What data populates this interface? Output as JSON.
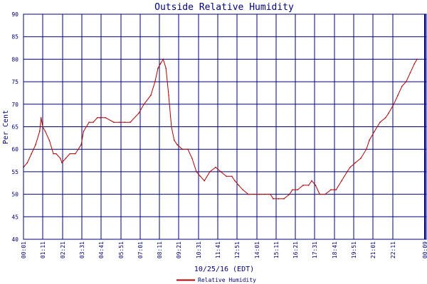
{
  "chart_data": {
    "type": "line",
    "title": "Outside Relative Humidity",
    "xlabel": "10/25/16 (EDT)",
    "ylabel": "Per Cent",
    "ylim": [
      40,
      90
    ],
    "yticks": [
      40,
      45,
      50,
      55,
      60,
      65,
      70,
      75,
      80,
      85,
      90
    ],
    "xlim": [
      "00:01",
      "00:09"
    ],
    "xticks": [
      "00:01",
      "01:11",
      "02:21",
      "03:31",
      "04:41",
      "05:51",
      "07:01",
      "08:11",
      "09:21",
      "10:31",
      "11:41",
      "12:51",
      "14:01",
      "15:11",
      "16:21",
      "17:31",
      "18:41",
      "19:51",
      "21:01",
      "22:11",
      "00:09"
    ],
    "grid": true,
    "legend_position": "bottom-center",
    "colors": {
      "series": "#b00000",
      "grid": "#00007a",
      "text": "#00007a"
    },
    "series": [
      {
        "name": "Relative Humidity",
        "x": [
          "00:01",
          "00:15",
          "00:30",
          "00:45",
          "01:00",
          "01:05",
          "01:11",
          "01:20",
          "01:35",
          "01:50",
          "02:00",
          "02:15",
          "02:21",
          "02:35",
          "02:50",
          "03:10",
          "03:31",
          "03:40",
          "03:50",
          "04:00",
          "04:15",
          "04:30",
          "04:41",
          "05:00",
          "05:30",
          "05:51",
          "06:10",
          "06:30",
          "07:01",
          "07:20",
          "07:45",
          "08:00",
          "08:11",
          "08:20",
          "08:30",
          "08:40",
          "08:50",
          "09:00",
          "09:10",
          "09:21",
          "09:40",
          "10:00",
          "10:15",
          "10:31",
          "10:45",
          "11:00",
          "11:20",
          "11:41",
          "12:00",
          "12:20",
          "12:40",
          "12:51",
          "13:05",
          "13:20",
          "13:40",
          "14:01",
          "14:20",
          "14:40",
          "15:00",
          "15:11",
          "15:30",
          "15:50",
          "16:10",
          "16:21",
          "16:40",
          "17:00",
          "17:20",
          "17:31",
          "17:45",
          "18:00",
          "18:20",
          "18:41",
          "19:00",
          "19:20",
          "19:40",
          "19:51",
          "20:10",
          "20:30",
          "20:50",
          "21:01",
          "21:20",
          "21:40",
          "22:00",
          "22:11",
          "22:30",
          "22:45",
          "23:00",
          "23:15",
          "23:30",
          "23:45",
          "23:55"
        ],
        "values": [
          56,
          57,
          59,
          61,
          64,
          67,
          65,
          64,
          62,
          59,
          59,
          58,
          57,
          58,
          59,
          59,
          61,
          64,
          65,
          66,
          66,
          67,
          67,
          67,
          66,
          66,
          66,
          66,
          68,
          70,
          72,
          75,
          78,
          79,
          80,
          78,
          72,
          65,
          62,
          61,
          60,
          60,
          58,
          55,
          54,
          53,
          55,
          56,
          55,
          54,
          54,
          53,
          52,
          51,
          50,
          50,
          50,
          50,
          50,
          49,
          49,
          49,
          50,
          51,
          51,
          52,
          52,
          53,
          52,
          50,
          50,
          51,
          51,
          53,
          55,
          56,
          57,
          58,
          60,
          62,
          64,
          66,
          67,
          68,
          70,
          72,
          74,
          75,
          77,
          79,
          80
        ]
      }
    ]
  }
}
